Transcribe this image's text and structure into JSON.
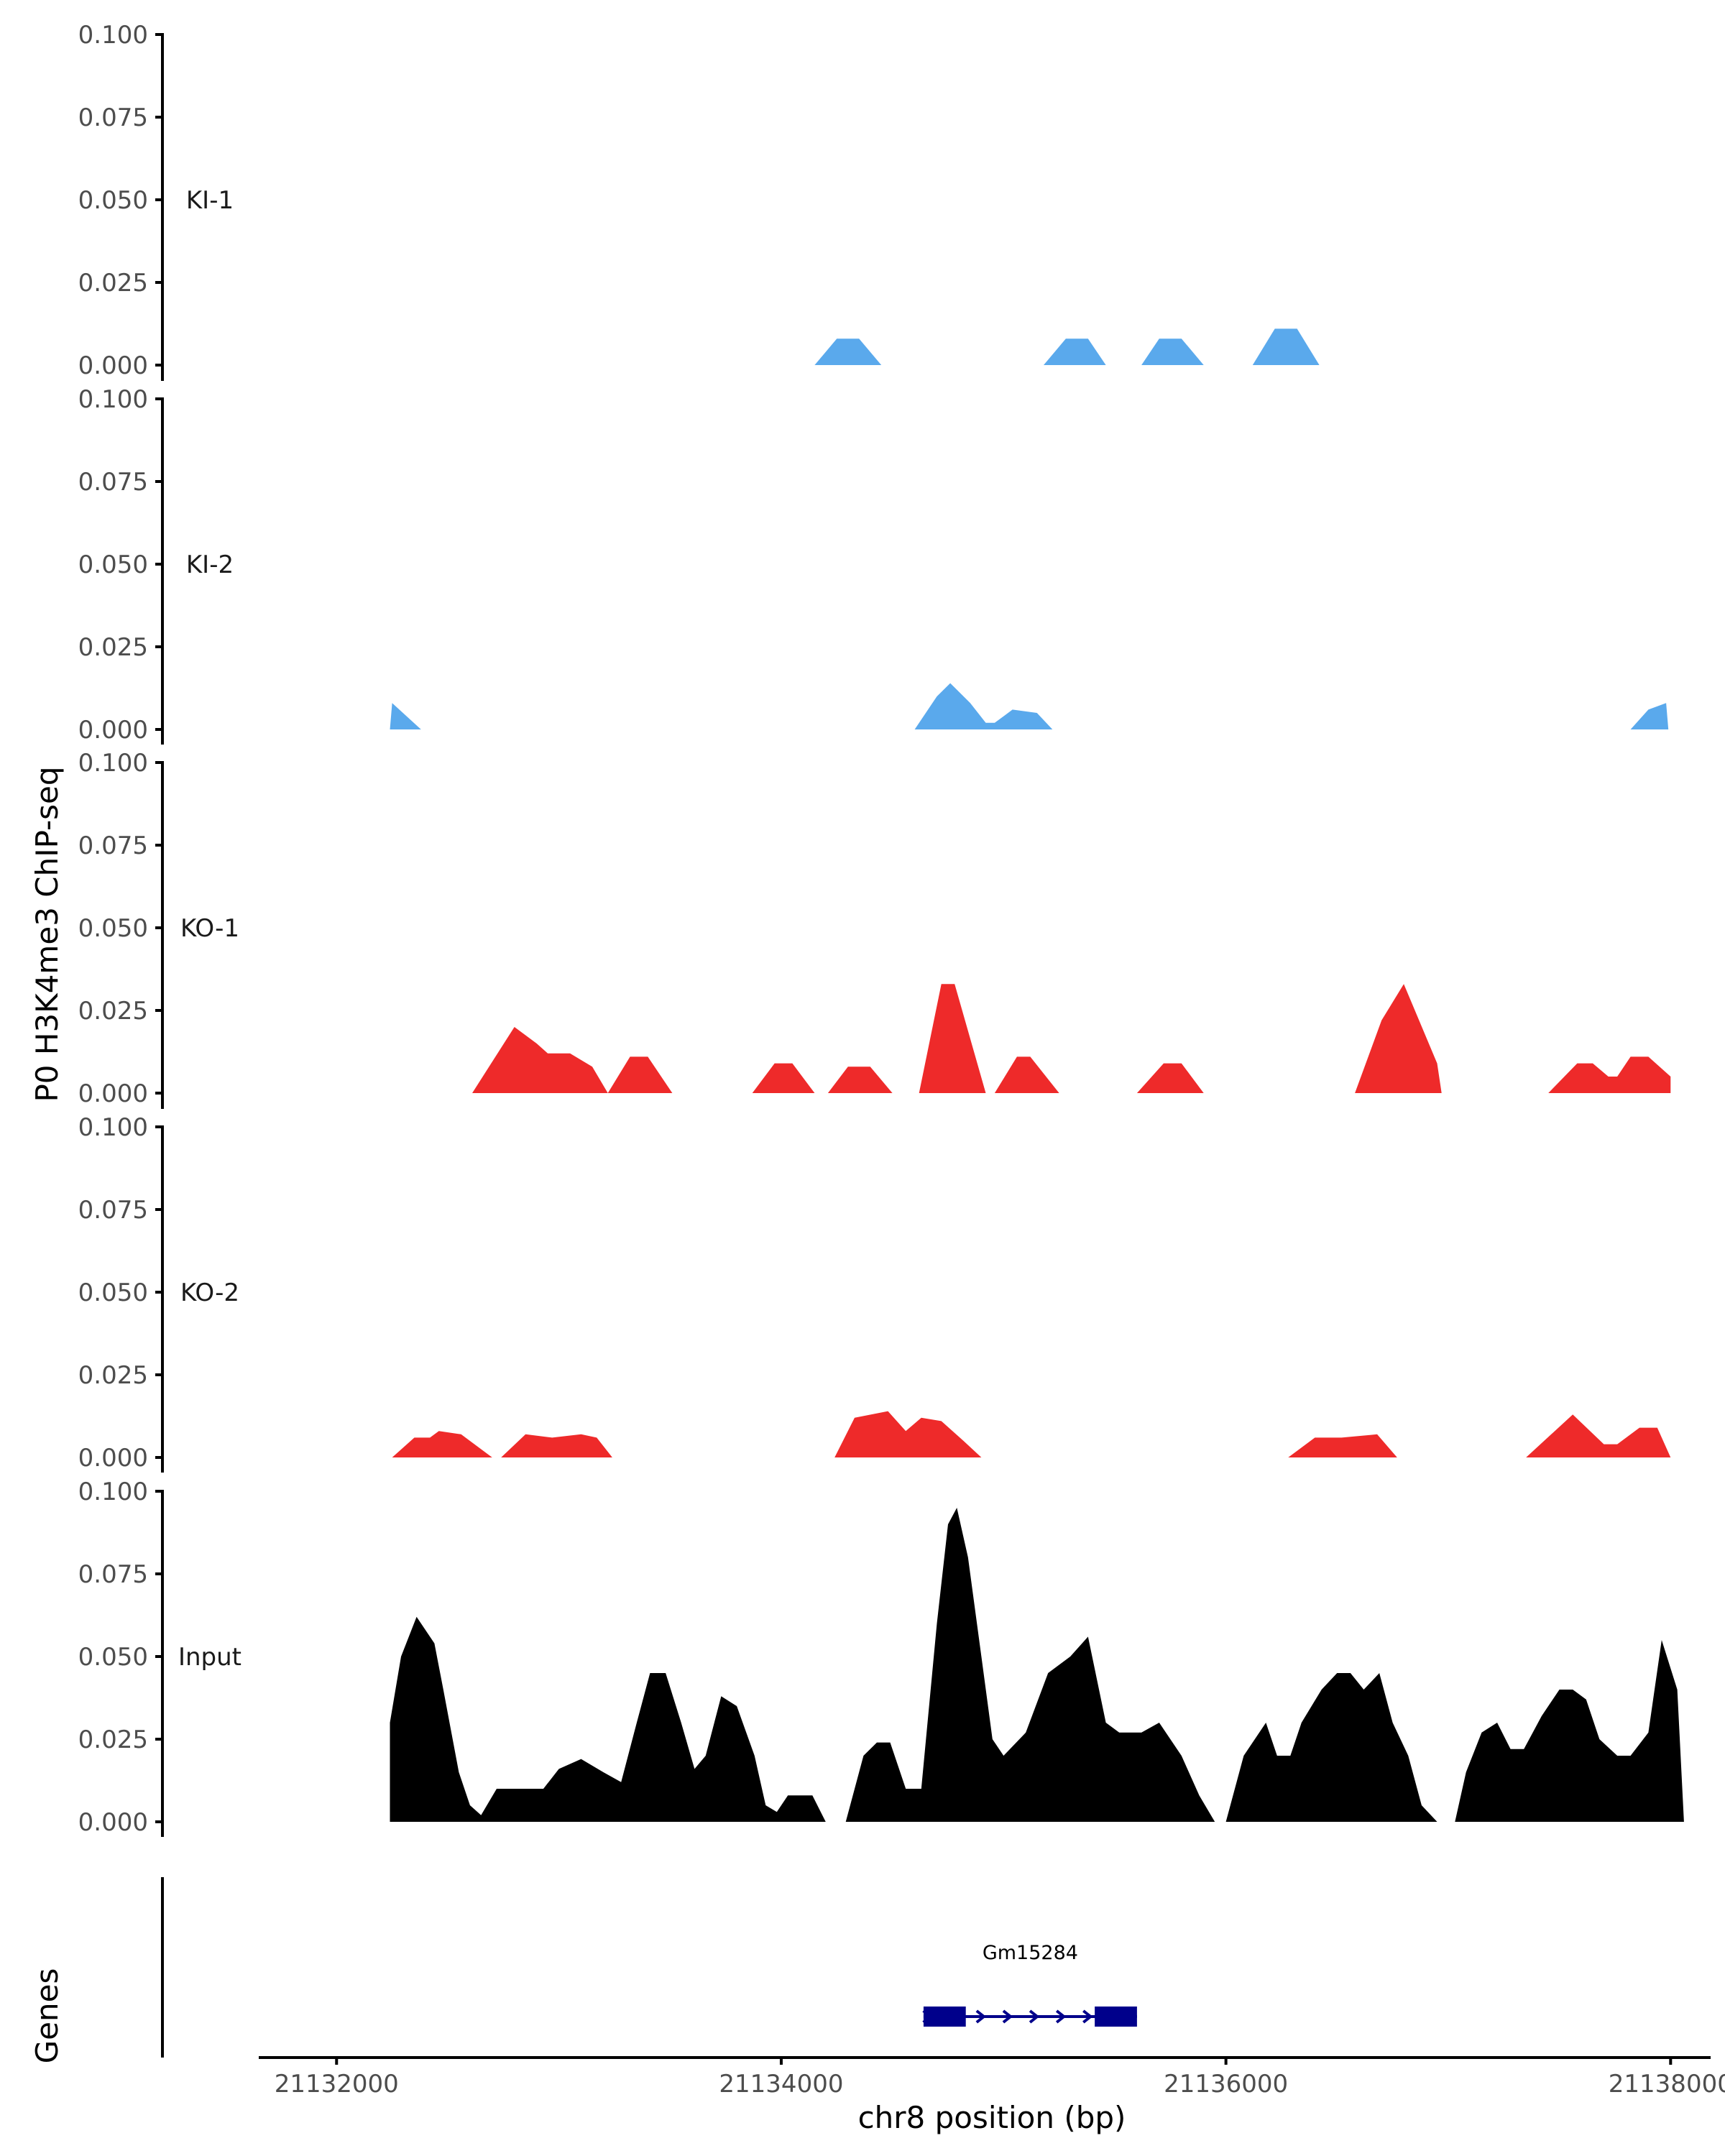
{
  "chart_data": {
    "type": "area",
    "ylabel": "P0 H3K4me3 ChIP-seq",
    "xlabel": "chr8 position (bp)",
    "genes_label": "Genes",
    "xlim": [
      21131650,
      21138180
    ],
    "ylim": [
      0,
      0.1
    ],
    "x_ticks": [
      21132000,
      21134000,
      21136000,
      21138000
    ],
    "x_tick_labels": [
      "21132000",
      "21134000",
      "21136000",
      "21138000"
    ],
    "y_ticks": [
      0,
      0.025,
      0.05,
      0.075,
      0.1
    ],
    "y_tick_labels": [
      "0.000",
      "0.025",
      "0.050",
      "0.075",
      "0.100"
    ],
    "colors": {
      "KI": "#5aa9ec",
      "KO": "#ee2a2a",
      "Input": "#000000",
      "gene": "#00008b",
      "axis": "#000000"
    },
    "series": [
      {
        "name": "KI-1",
        "color_key": "KI",
        "segments": [
          [
            [
              21134150,
              0
            ],
            [
              21134250,
              0.008
            ],
            [
              21134350,
              0.008
            ],
            [
              21134450,
              0
            ]
          ],
          [
            [
              21135180,
              0
            ],
            [
              21135280,
              0.008
            ],
            [
              21135380,
              0.008
            ],
            [
              21135460,
              0
            ]
          ],
          [
            [
              21135620,
              0
            ],
            [
              21135700,
              0.008
            ],
            [
              21135800,
              0.008
            ],
            [
              21135900,
              0
            ]
          ],
          [
            [
              21136120,
              0
            ],
            [
              21136220,
              0.011
            ],
            [
              21136320,
              0.011
            ],
            [
              21136420,
              0
            ]
          ]
        ]
      },
      {
        "name": "KI-2",
        "color_key": "KI",
        "segments": [
          [
            [
              21132240,
              0
            ],
            [
              21132250,
              0.008
            ],
            [
              21132380,
              0
            ]
          ],
          [
            [
              21134600,
              0
            ],
            [
              21134700,
              0.01
            ],
            [
              21134760,
              0.014
            ],
            [
              21134850,
              0.008
            ],
            [
              21134920,
              0.002
            ],
            [
              21134960,
              0.002
            ],
            [
              21135040,
              0.006
            ],
            [
              21135150,
              0.005
            ],
            [
              21135220,
              0
            ]
          ],
          [
            [
              21137820,
              0
            ],
            [
              21137900,
              0.006
            ],
            [
              21137980,
              0.008
            ],
            [
              21137990,
              0
            ]
          ]
        ]
      },
      {
        "name": "KO-1",
        "color_key": "KO",
        "segments": [
          [
            [
              21132610,
              0
            ],
            [
              21132800,
              0.02
            ],
            [
              21132900,
              0.015
            ],
            [
              21132950,
              0.012
            ],
            [
              21133050,
              0.012
            ],
            [
              21133150,
              0.008
            ],
            [
              21133220,
              0
            ],
            [
              21133320,
              0.011
            ],
            [
              21133400,
              0.011
            ],
            [
              21133510,
              0
            ]
          ],
          [
            [
              21133870,
              0
            ],
            [
              21133970,
              0.009
            ],
            [
              21134050,
              0.009
            ],
            [
              21134150,
              0
            ]
          ],
          [
            [
              21134210,
              0
            ],
            [
              21134300,
              0.008
            ],
            [
              21134400,
              0.008
            ],
            [
              21134500,
              0
            ]
          ],
          [
            [
              21134620,
              0
            ],
            [
              21134720,
              0.033
            ],
            [
              21134780,
              0.033
            ],
            [
              21134920,
              0
            ]
          ],
          [
            [
              21134960,
              0
            ],
            [
              21135060,
              0.011
            ],
            [
              21135120,
              0.011
            ],
            [
              21135250,
              0
            ]
          ],
          [
            [
              21135600,
              0
            ],
            [
              21135720,
              0.009
            ],
            [
              21135800,
              0.009
            ],
            [
              21135900,
              0
            ]
          ],
          [
            [
              21136580,
              0
            ],
            [
              21136700,
              0.022
            ],
            [
              21136800,
              0.033
            ],
            [
              21136950,
              0.009
            ],
            [
              21136970,
              0
            ]
          ],
          [
            [
              21137450,
              0
            ],
            [
              21137580,
              0.009
            ],
            [
              21137650,
              0.009
            ],
            [
              21137720,
              0.005
            ],
            [
              21137760,
              0.005
            ],
            [
              21137820,
              0.011
            ],
            [
              21137900,
              0.011
            ],
            [
              21138000,
              0.005
            ],
            [
              21138000,
              0
            ]
          ]
        ]
      },
      {
        "name": "KO-2",
        "color_key": "KO",
        "segments": [
          [
            [
              21132250,
              0
            ],
            [
              21132350,
              0.006
            ],
            [
              21132420,
              0.006
            ],
            [
              21132460,
              0.008
            ],
            [
              21132560,
              0.007
            ],
            [
              21132700,
              0
            ]
          ],
          [
            [
              21132740,
              0
            ],
            [
              21132850,
              0.007
            ],
            [
              21132970,
              0.006
            ],
            [
              21133100,
              0.007
            ],
            [
              21133170,
              0.006
            ],
            [
              21133240,
              0
            ]
          ],
          [
            [
              21134240,
              0
            ],
            [
              21134330,
              0.012
            ],
            [
              21134480,
              0.014
            ],
            [
              21134560,
              0.008
            ],
            [
              21134630,
              0.012
            ],
            [
              21134720,
              0.011
            ],
            [
              21134820,
              0.005
            ],
            [
              21134900,
              0
            ]
          ],
          [
            [
              21136280,
              0
            ],
            [
              21136400,
              0.006
            ],
            [
              21136520,
              0.006
            ],
            [
              21136680,
              0.007
            ],
            [
              21136770,
              0
            ]
          ],
          [
            [
              21137350,
              0
            ],
            [
              21137560,
              0.013
            ],
            [
              21137700,
              0.004
            ],
            [
              21137760,
              0.004
            ],
            [
              21137860,
              0.009
            ],
            [
              21137940,
              0.009
            ],
            [
              21138000,
              0
            ]
          ]
        ]
      },
      {
        "name": "Input",
        "color_key": "Input",
        "segments": [
          [
            [
              21132240,
              0
            ],
            [
              21132240,
              0.03
            ],
            [
              21132290,
              0.05
            ],
            [
              21132360,
              0.062
            ],
            [
              21132440,
              0.054
            ],
            [
              21132480,
              0.04
            ],
            [
              21132550,
              0.015
            ],
            [
              21132600,
              0.005
            ],
            [
              21132650,
              0.002
            ],
            [
              21132720,
              0.01
            ],
            [
              21132930,
              0.01
            ],
            [
              21133000,
              0.016
            ],
            [
              21133100,
              0.019
            ],
            [
              21133200,
              0.015
            ],
            [
              21133280,
              0.012
            ],
            [
              21133350,
              0.03
            ],
            [
              21133410,
              0.045
            ],
            [
              21133480,
              0.045
            ],
            [
              21133550,
              0.03
            ],
            [
              21133610,
              0.016
            ],
            [
              21133660,
              0.02
            ],
            [
              21133730,
              0.038
            ],
            [
              21133800,
              0.035
            ],
            [
              21133880,
              0.02
            ],
            [
              21133930,
              0.005
            ],
            [
              21133980,
              0.003
            ],
            [
              21134030,
              0.008
            ],
            [
              21134140,
              0.008
            ],
            [
              21134200,
              0
            ]
          ],
          [
            [
              21134290,
              0
            ],
            [
              21134370,
              0.02
            ],
            [
              21134430,
              0.024
            ],
            [
              21134490,
              0.024
            ],
            [
              21134560,
              0.01
            ],
            [
              21134630,
              0.01
            ],
            [
              21134700,
              0.06
            ],
            [
              21134750,
              0.09
            ],
            [
              21134790,
              0.095
            ],
            [
              21134840,
              0.08
            ],
            [
              21134900,
              0.05
            ],
            [
              21134950,
              0.025
            ],
            [
              21135000,
              0.02
            ],
            [
              21135100,
              0.027
            ],
            [
              21135200,
              0.045
            ],
            [
              21135300,
              0.05
            ],
            [
              21135380,
              0.056
            ],
            [
              21135460,
              0.03
            ],
            [
              21135520,
              0.027
            ],
            [
              21135620,
              0.027
            ],
            [
              21135700,
              0.03
            ],
            [
              21135800,
              0.02
            ],
            [
              21135880,
              0.008
            ],
            [
              21135950,
              0
            ]
          ],
          [
            [
              21136000,
              0
            ],
            [
              21136080,
              0.02
            ],
            [
              21136180,
              0.03
            ],
            [
              21136230,
              0.02
            ],
            [
              21136290,
              0.02
            ],
            [
              21136340,
              0.03
            ],
            [
              21136430,
              0.04
            ],
            [
              21136500,
              0.045
            ],
            [
              21136560,
              0.045
            ],
            [
              21136620,
              0.04
            ],
            [
              21136690,
              0.045
            ],
            [
              21136750,
              0.03
            ],
            [
              21136820,
              0.02
            ],
            [
              21136880,
              0.005
            ],
            [
              21136950,
              0
            ]
          ],
          [
            [
              21137030,
              0
            ],
            [
              21137080,
              0.015
            ],
            [
              21137150,
              0.027
            ],
            [
              21137220,
              0.03
            ],
            [
              21137280,
              0.022
            ],
            [
              21137340,
              0.022
            ],
            [
              21137420,
              0.032
            ],
            [
              21137500,
              0.04
            ],
            [
              21137560,
              0.04
            ],
            [
              21137620,
              0.037
            ],
            [
              21137680,
              0.025
            ],
            [
              21137760,
              0.02
            ],
            [
              21137820,
              0.02
            ],
            [
              21137900,
              0.027
            ],
            [
              21137960,
              0.055
            ],
            [
              21138030,
              0.04
            ],
            [
              21138060,
              0
            ]
          ]
        ]
      }
    ],
    "gene": {
      "name": "Gm15284",
      "strand": "+",
      "start": 21134640,
      "end": 21135600,
      "exons": [
        [
          21134640,
          21134830
        ],
        [
          21135410,
          21135600
        ]
      ]
    }
  }
}
